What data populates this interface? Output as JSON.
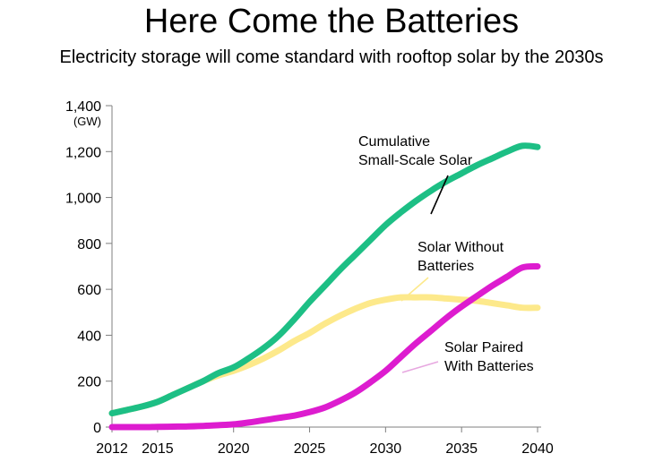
{
  "header": {
    "title": "Here Come the Batteries",
    "subtitle": "Electricity storage will come standard with rooftop solar by the 2030s"
  },
  "chart_data": {
    "type": "line",
    "title": "Here Come the Batteries",
    "subtitle": "Electricity storage will come standard with rooftop solar by the 2030s",
    "xlabel": "",
    "ylabel": "",
    "y_unit": "(GW)",
    "xlim": [
      2012,
      2040
    ],
    "ylim": [
      0,
      1400
    ],
    "x_ticks": [
      2012,
      2015,
      2020,
      2025,
      2030,
      2035,
      2040
    ],
    "x_tick_labels": [
      "2012",
      "2015",
      "2020",
      "2025",
      "2030",
      "2035",
      "2040"
    ],
    "y_ticks": [
      0,
      200,
      400,
      600,
      800,
      1000,
      1200,
      1400
    ],
    "y_tick_labels": [
      "0",
      "200",
      "400",
      "600",
      "800",
      "1,000",
      "1,200",
      "1,400"
    ],
    "grid": false,
    "legend": "none",
    "x": [
      2012,
      2013,
      2014,
      2015,
      2016,
      2017,
      2018,
      2019,
      2020,
      2021,
      2022,
      2023,
      2024,
      2025,
      2026,
      2027,
      2028,
      2029,
      2030,
      2031,
      2032,
      2033,
      2034,
      2035,
      2036,
      2037,
      2038,
      2039,
      2040
    ],
    "series": [
      {
        "name": "Cumulative Small-Scale Solar",
        "color": "#1dbf85",
        "values": [
          60,
          75,
          90,
          110,
          140,
          170,
          200,
          235,
          260,
          300,
          345,
          400,
          470,
          545,
          615,
          685,
          750,
          815,
          880,
          935,
          985,
          1030,
          1070,
          1105,
          1140,
          1170,
          1200,
          1225,
          1220
        ]
      },
      {
        "name": "Solar Without Batteries",
        "color": "#fde98b",
        "values": [
          60,
          75,
          90,
          110,
          140,
          170,
          200,
          225,
          245,
          270,
          300,
          335,
          375,
          410,
          450,
          485,
          515,
          540,
          555,
          565,
          565,
          565,
          560,
          555,
          550,
          540,
          530,
          520,
          520
        ]
      },
      {
        "name": "Solar Paired With Batteries",
        "color": "#dd1ccf",
        "values": [
          0,
          0,
          0,
          1,
          2,
          3,
          5,
          8,
          12,
          20,
          30,
          40,
          50,
          65,
          85,
          115,
          150,
          195,
          245,
          305,
          365,
          420,
          475,
          525,
          570,
          615,
          655,
          695,
          700
        ]
      }
    ],
    "annotations": [
      {
        "series": "Cumulative Small-Scale Solar",
        "lines": [
          "Cumulative",
          "Small-Scale Solar"
        ]
      },
      {
        "series": "Solar Without Batteries",
        "lines": [
          "Solar Without",
          "Batteries"
        ]
      },
      {
        "series": "Solar Paired With Batteries",
        "lines": [
          "Solar Paired",
          "With Batteries"
        ]
      }
    ]
  }
}
